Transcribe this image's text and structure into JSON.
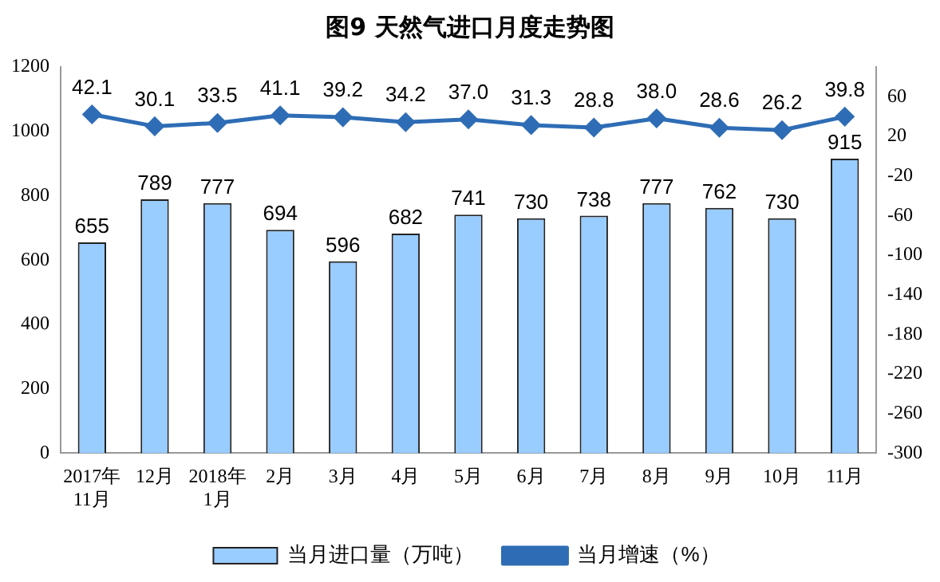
{
  "chart_data": {
    "type": "bar",
    "title": "图9  天然气进口月度走势图",
    "categories": [
      "2017年\n11月",
      "12月",
      "2018年\n1月",
      "2月",
      "3月",
      "4月",
      "5月",
      "6月",
      "7月",
      "8月",
      "9月",
      "10月",
      "11月"
    ],
    "series": [
      {
        "name": "当月进口量（万吨）",
        "color": "#99ccff",
        "values": [
          655,
          789,
          777,
          694,
          596,
          682,
          741,
          730,
          738,
          777,
          762,
          730,
          915
        ]
      },
      {
        "name": "当月增速（%）",
        "type": "line",
        "axis": "y2",
        "color": "#2e6db5",
        "values": [
          42.1,
          30.1,
          33.5,
          41.1,
          39.2,
          34.2,
          37.0,
          31.3,
          28.8,
          38.0,
          28.6,
          26.2,
          39.8
        ],
        "value_labels": [
          "42.1",
          "30.1",
          "33.5",
          "41.1",
          "39.2",
          "34.2",
          "37.0",
          "31.3",
          "28.8",
          "38.0",
          "28.6",
          "26.2",
          "39.8"
        ]
      }
    ],
    "ylim": [
      0,
      1200
    ],
    "yticks": [
      0,
      200,
      400,
      600,
      800,
      1000,
      1200
    ],
    "y2lim": [
      -300,
      90
    ],
    "y2ticks": [
      60,
      20,
      -20,
      -60,
      -100,
      -140,
      -180,
      -220,
      -260,
      -300
    ],
    "data_labels": true,
    "legend": "bottom",
    "grid": false,
    "marker": "diamond"
  }
}
